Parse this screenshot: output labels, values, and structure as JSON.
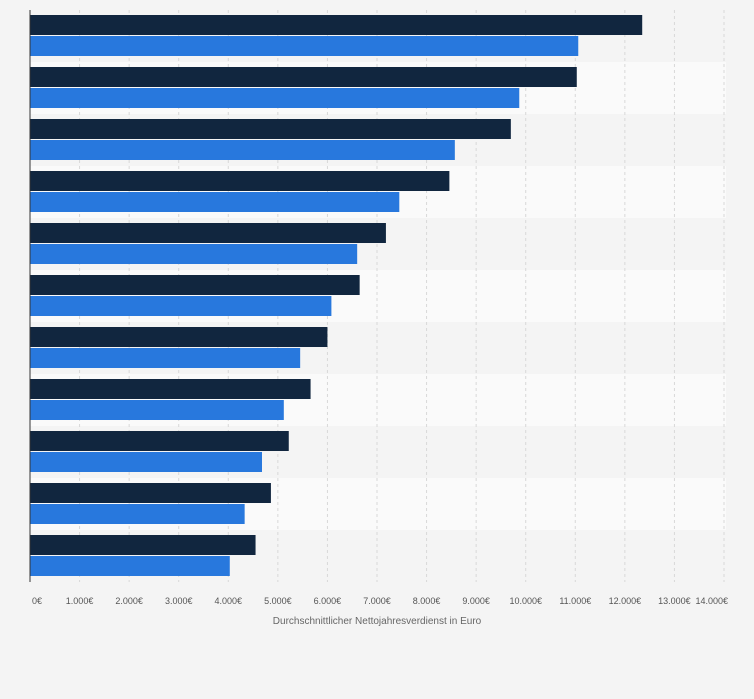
{
  "chart_data": {
    "type": "bar",
    "orientation": "horizontal",
    "xlabel": "Durchschnittlicher Nettojahresverdienst in Euro",
    "ylabel": "",
    "xlim": [
      0,
      14000
    ],
    "grid": true,
    "categories": [
      "",
      "",
      "",
      "",
      "",
      "",
      "",
      "",
      "",
      "",
      ""
    ],
    "ticks": [
      {
        "value": 0,
        "label": "0€"
      },
      {
        "value": 1000,
        "label": "1.000€"
      },
      {
        "value": 2000,
        "label": "2.000€"
      },
      {
        "value": 3000,
        "label": "3.000€"
      },
      {
        "value": 4000,
        "label": "4.000€"
      },
      {
        "value": 5000,
        "label": "5.000€"
      },
      {
        "value": 6000,
        "label": "6.000€"
      },
      {
        "value": 7000,
        "label": "7.000€"
      },
      {
        "value": 8000,
        "label": "8.000€"
      },
      {
        "value": 9000,
        "label": "9.000€"
      },
      {
        "value": 10000,
        "label": "10.000€"
      },
      {
        "value": 11000,
        "label": "11.000€"
      },
      {
        "value": 12000,
        "label": "12.000€"
      },
      {
        "value": 13000,
        "label": "13.000€"
      },
      {
        "value": 14000,
        "label": "14.000€"
      }
    ],
    "series": [
      {
        "color": "#11263f",
        "values": [
          12350,
          11030,
          9700,
          8460,
          7180,
          6650,
          6000,
          5660,
          5220,
          4860,
          4550
        ]
      },
      {
        "color": "#2878dd",
        "values": [
          11060,
          9870,
          8570,
          7450,
          6600,
          6080,
          5450,
          5120,
          4680,
          4330,
          4030
        ]
      }
    ]
  }
}
